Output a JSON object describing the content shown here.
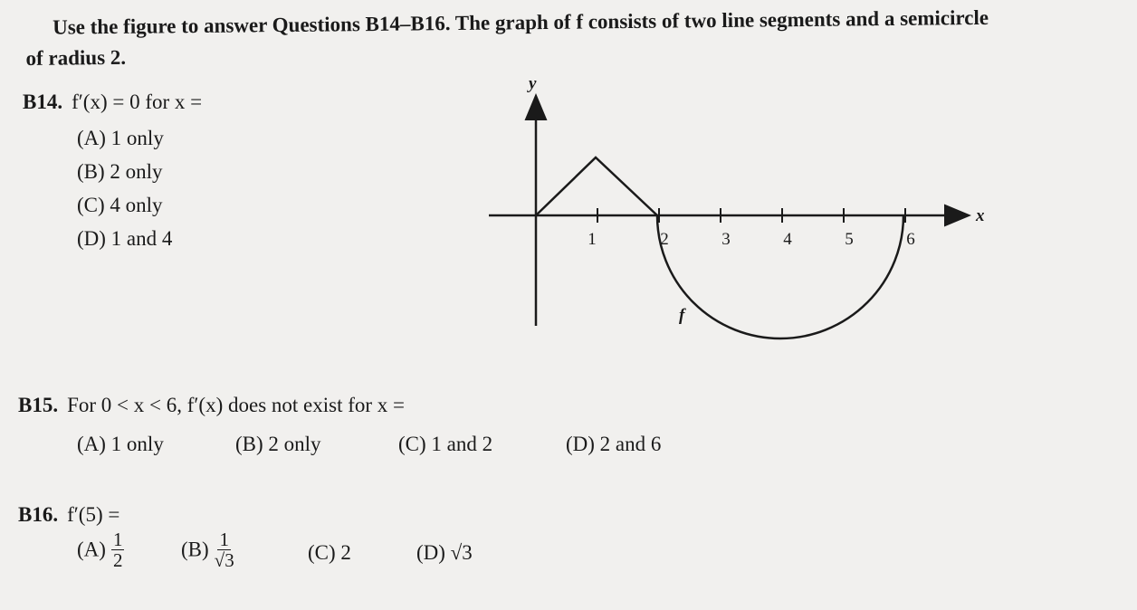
{
  "intro": "Use the figure to answer Questions B14–B16. The graph of f consists of two line segments and a semicircle of radius 2.",
  "questions": [
    {
      "number": "B14.",
      "prompt": "f′(x) = 0 for x =",
      "choices": [
        {
          "text": "(A) 1 only"
        },
        {
          "text": "(B) 2 only"
        },
        {
          "text": "(C) 4 only"
        },
        {
          "text": "(D) 1 and 4"
        }
      ]
    },
    {
      "number": "B15.",
      "prompt": "For 0 < x < 6, f′(x) does not exist for x =",
      "choices": [
        {
          "text": "(A) 1 only"
        },
        {
          "text": "(B) 2 only"
        },
        {
          "text": "(C) 1 and 2"
        },
        {
          "text": "(D) 2 and 6"
        }
      ]
    },
    {
      "number": "B16.",
      "prompt": "f′(5) =",
      "choices": [
        {
          "label": "(A)",
          "numerator": "1",
          "denominator": "2"
        },
        {
          "label": "(B)",
          "numerator": "1",
          "denominator": "√3"
        },
        {
          "text": "(C) 2"
        },
        {
          "text": "(D) √3"
        }
      ]
    }
  ],
  "figure": {
    "y_label": "y",
    "x_label": "x",
    "tick_labels": [
      "1",
      "2",
      "3",
      "4",
      "5",
      "6"
    ],
    "curve_label": "f"
  }
}
